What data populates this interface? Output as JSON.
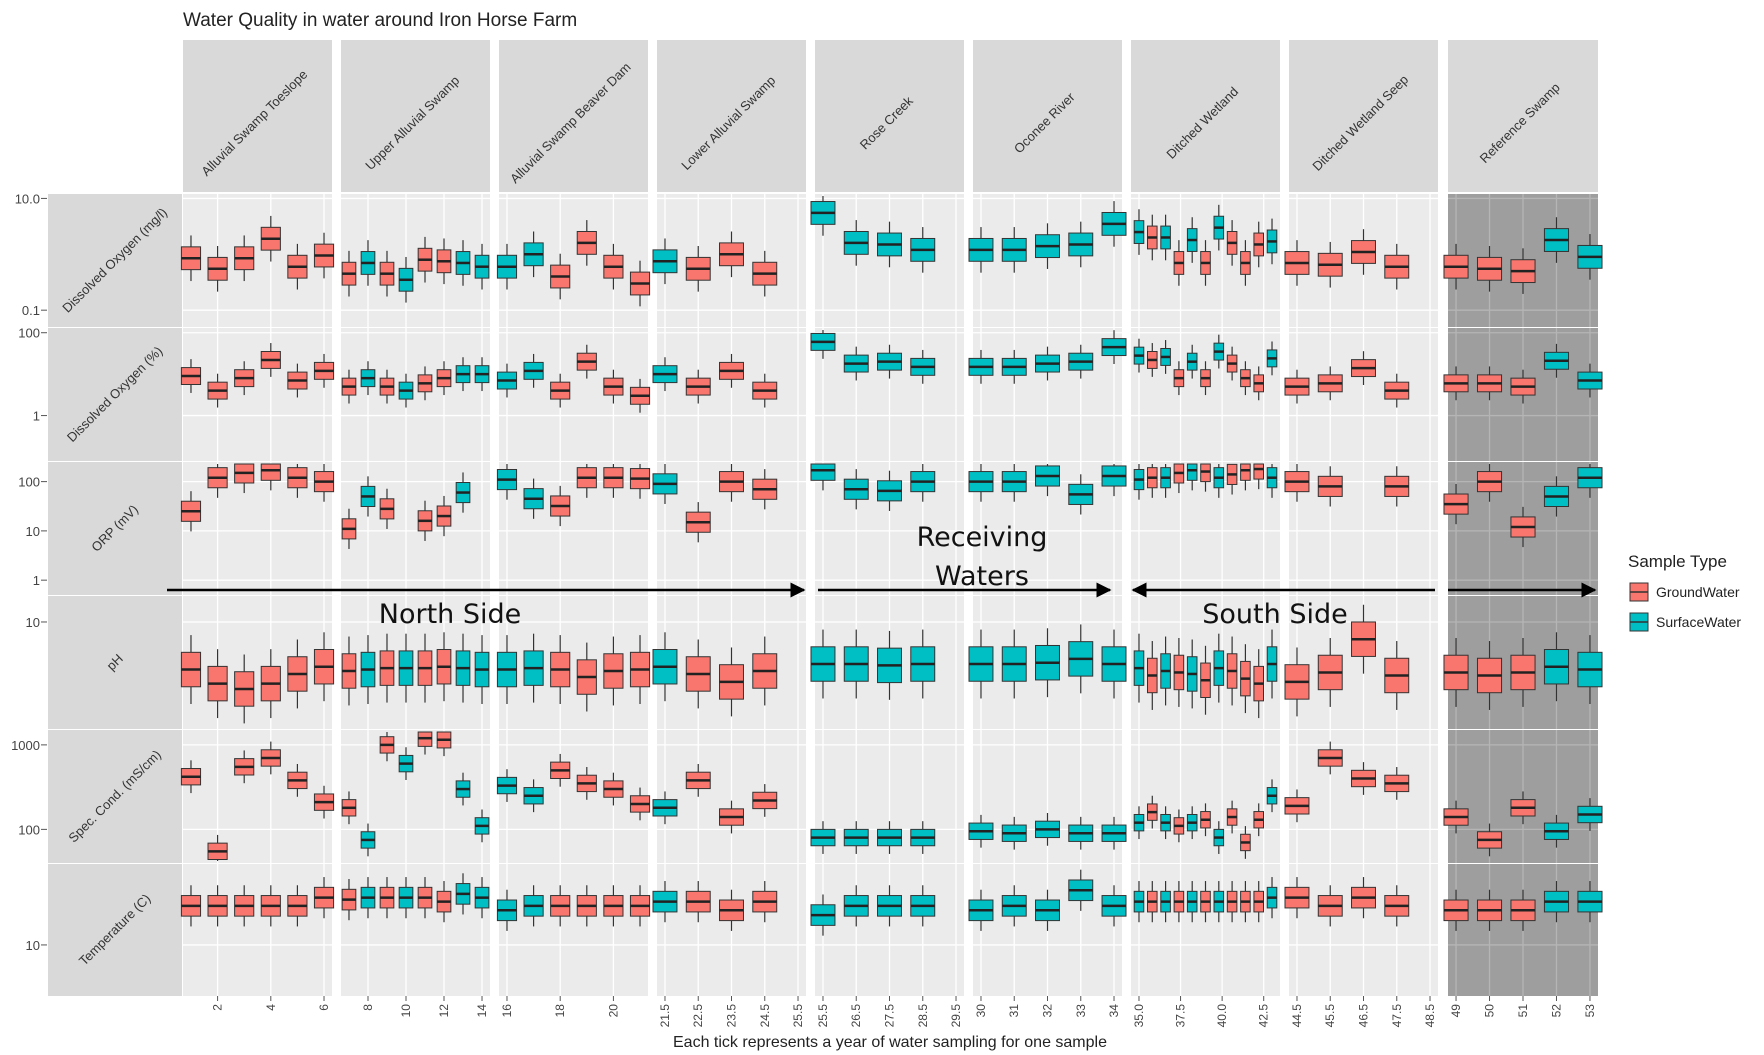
{
  "chart_data": {
    "type": "faceted-boxplot",
    "title": "Water Quality in water around Iron Horse Farm",
    "xlabel": "Each tick represents a year of water sampling for one sample",
    "legend": {
      "title": "Sample Type",
      "position": "right",
      "entries": [
        {
          "name": "GroundWater",
          "color": "#F8766D"
        },
        {
          "name": "SurfaceWater",
          "color": "#00BFC4"
        }
      ]
    },
    "colors": {
      "GroundWater": "#F8766D",
      "SurfaceWater": "#00BFC4",
      "panel_bg": "#EBEBEB",
      "strip_bg": "#D9D9D9",
      "reference_shade": "#9E9E9E"
    },
    "grid": true,
    "annotations": [
      {
        "text": "North Side",
        "arrow": "right"
      },
      {
        "text": "Receiving Waters",
        "arrow": "right"
      },
      {
        "text": "South Side",
        "arrow": "left"
      },
      {
        "text": "",
        "arrow": "right"
      }
    ],
    "columns": [
      {
        "name": "Alluvial Swamp Toeslope",
        "ticks": [
          "2",
          "4",
          "6"
        ],
        "samples": [
          1,
          2,
          3,
          4,
          5,
          6
        ]
      },
      {
        "name": "Upper Alluvial Swamp",
        "ticks": [
          "8",
          "10",
          "12",
          "14"
        ],
        "samples": [
          7,
          8,
          9,
          10,
          11,
          12,
          13,
          14
        ]
      },
      {
        "name": "Alluvial Swamp Beaver Dam",
        "ticks": [
          "16",
          "18",
          "20"
        ],
        "samples": [
          16,
          17,
          18,
          19,
          20,
          21
        ]
      },
      {
        "name": "Lower Alluvial Swamp",
        "ticks": [
          "21.5",
          "22.5",
          "23.5",
          "24.5",
          "25.5"
        ],
        "samples": [
          21.5,
          22.5,
          23.5,
          24.5
        ]
      },
      {
        "name": "Rose Creek",
        "ticks": [
          "25.5",
          "26.5",
          "27.5",
          "28.5",
          "29.5"
        ],
        "samples": [
          25.5,
          26.5,
          27.5,
          28.5
        ]
      },
      {
        "name": "Oconee River",
        "ticks": [
          "30",
          "31",
          "32",
          "33",
          "34"
        ],
        "samples": [
          30,
          31,
          32,
          33,
          34
        ]
      },
      {
        "name": "Ditched Wetland",
        "ticks": [
          "35.0",
          "37.5",
          "40.0",
          "42.5"
        ],
        "samples": [
          35,
          35.8,
          36.6,
          37.4,
          38.2,
          39,
          39.8,
          40.6,
          41.4,
          42.2,
          43
        ]
      },
      {
        "name": "Ditched Wetland Seep",
        "ticks": [
          "44.5",
          "45.5",
          "46.5",
          "47.5",
          "48.5"
        ],
        "samples": [
          44.5,
          45.5,
          46.5,
          47.5
        ]
      },
      {
        "name": "Reference Swamp",
        "ticks": [
          "49",
          "50",
          "51",
          "52",
          "53"
        ],
        "samples": [
          49,
          50,
          51,
          52,
          53
        ]
      }
    ],
    "rows": [
      {
        "name": "Dissolved Oxygen (mg/l)",
        "scale": "log10",
        "ylim": [
          0.05,
          12
        ],
        "tick_labels": [
          "0.1",
          "10.0"
        ]
      },
      {
        "name": "Dissolved Oxygen (%)",
        "scale": "log10",
        "ylim": [
          0.08,
          130
        ],
        "tick_labels": [
          "1",
          "100"
        ]
      },
      {
        "name": "ORP (mV)",
        "scale": "log10",
        "ylim": [
          0.5,
          250
        ],
        "tick_labels": [
          "1",
          "10",
          "100"
        ]
      },
      {
        "name": "pH",
        "scale": "log10",
        "ylim": [
          2.5,
          14
        ],
        "tick_labels": [
          "10"
        ]
      },
      {
        "name": "Spec. Cond. (mS/cm)",
        "scale": "log10",
        "ylim": [
          40,
          1500
        ],
        "tick_labels": [
          "100",
          "1000"
        ]
      },
      {
        "name": "Temperature (C)",
        "scale": "log10",
        "ylim": [
          5,
          30
        ],
        "tick_labels": [
          "10"
        ]
      }
    ],
    "sample_types": [
      [
        "G",
        "G",
        "G",
        "G",
        "G",
        "G"
      ],
      [
        "G",
        "S",
        "G",
        "S",
        "G",
        "G",
        "S",
        "S"
      ],
      [
        "S",
        "S",
        "G",
        "G",
        "G",
        "G"
      ],
      [
        "S",
        "G",
        "G",
        "G"
      ],
      [
        "S",
        "S",
        "S",
        "S"
      ],
      [
        "S",
        "S",
        "S",
        "S",
        "S"
      ],
      [
        "S",
        "G",
        "S",
        "G",
        "S",
        "G",
        "S",
        "G",
        "G",
        "G",
        "S"
      ],
      [
        "G",
        "G",
        "G",
        "G"
      ],
      [
        "G",
        "G",
        "G",
        "S",
        "S"
      ]
    ],
    "series": [
      {
        "name": "Dissolved Oxygen (mg/l)",
        "values": [
          [
            0.85,
            0.55,
            0.85,
            1.9,
            0.6,
            0.95
          ],
          [
            0.45,
            0.7,
            0.45,
            0.35,
            0.8,
            0.75,
            0.7,
            0.6
          ],
          [
            0.6,
            1.0,
            0.4,
            1.6,
            0.6,
            0.3
          ],
          [
            0.75,
            0.55,
            1.0,
            0.45
          ],
          [
            5.5,
            1.6,
            1.5,
            1.2
          ],
          [
            1.2,
            1.2,
            1.4,
            1.5,
            3.5
          ],
          [
            2.5,
            2.0,
            2.0,
            0.7,
            1.8,
            0.7,
            3.0,
            1.6,
            0.7,
            1.5,
            1.7
          ],
          [
            0.7,
            0.65,
            1.1,
            0.6
          ],
          [
            0.6,
            0.55,
            0.5,
            1.8,
            0.9
          ]
        ]
      },
      {
        "name": "Dissolved Oxygen (%)",
        "values": [
          [
            9,
            4,
            8,
            22,
            7,
            12
          ],
          [
            5,
            8,
            5,
            4,
            6,
            8,
            10,
            10
          ],
          [
            7,
            12,
            4,
            20,
            5,
            3
          ],
          [
            10,
            5,
            12,
            4
          ],
          [
            60,
            18,
            20,
            15
          ],
          [
            15,
            15,
            18,
            20,
            45
          ],
          [
            28,
            22,
            26,
            8,
            20,
            8,
            35,
            18,
            8,
            6,
            24
          ],
          [
            5,
            6,
            14,
            4
          ],
          [
            6,
            6,
            5,
            21,
            7
          ]
        ]
      },
      {
        "name": "ORP (mV)",
        "values": [
          [
            25,
            120,
            150,
            170,
            120,
            100
          ],
          [
            11,
            50,
            28,
            null,
            16,
            20,
            60,
            null
          ],
          [
            110,
            45,
            32,
            120,
            120,
            115
          ],
          [
            90,
            15,
            100,
            70
          ],
          [
            170,
            70,
            65,
            100
          ],
          [
            100,
            100,
            130,
            55,
            130
          ],
          [
            110,
            120,
            120,
            150,
            170,
            160,
            120,
            140,
            170,
            180,
            120
          ],
          [
            100,
            80,
            null,
            80
          ],
          [
            35,
            100,
            12,
            50,
            120
          ]
        ]
      },
      {
        "name": "pH",
        "values": [
          [
            5.4,
            4.5,
            4.2,
            4.5,
            5.1,
            5.6
          ],
          [
            5.3,
            5.4,
            5.5,
            5.5,
            5.5,
            5.6,
            5.5,
            5.4
          ],
          [
            5.4,
            5.5,
            5.4,
            4.9,
            5.3,
            5.4
          ],
          [
            5.6,
            5.1,
            4.6,
            5.3
          ],
          [
            5.8,
            5.8,
            5.7,
            5.8
          ],
          [
            5.8,
            5.8,
            5.9,
            6.2,
            5.8
          ],
          [
            5.5,
            5.0,
            5.3,
            5.2,
            5.1,
            4.7,
            5.5,
            5.3,
            4.8,
            4.5,
            5.8
          ],
          [
            4.6,
            5.2,
            8.0,
            5.0
          ],
          [
            5.2,
            5.0,
            5.2,
            5.6,
            5.4
          ]
        ]
      },
      {
        "name": "Spec. Cond. (mS/cm)",
        "values": [
          [
            420,
            55,
            550,
            700,
            380,
            210
          ],
          [
            180,
            75,
            1000,
            600,
            1200,
            1150,
            300,
            110
          ],
          [
            330,
            250,
            500,
            350,
            300,
            200
          ],
          [
            180,
            380,
            140,
            220
          ],
          [
            80,
            80,
            80,
            80
          ],
          [
            95,
            90,
            100,
            90,
            90
          ],
          [
            120,
            160,
            120,
            110,
            120,
            130,
            80,
            140,
            70,
            130,
            250
          ],
          [
            190,
            700,
            400,
            350
          ],
          [
            140,
            75,
            180,
            95,
            150
          ]
        ]
      },
      {
        "name": "Temperature (C)",
        "values": [
          [
            17,
            17,
            17,
            17,
            17,
            19
          ],
          [
            18.5,
            19,
            19,
            19,
            19,
            18,
            20,
            19
          ],
          [
            16,
            17,
            17,
            17,
            17,
            17
          ],
          [
            18,
            18,
            16,
            18
          ],
          [
            15,
            17,
            17,
            17
          ],
          [
            16,
            17,
            16,
            21,
            17
          ],
          [
            18,
            18,
            18,
            18,
            18,
            18,
            18,
            18,
            18,
            18,
            19
          ],
          [
            19,
            17,
            19,
            17
          ],
          [
            16,
            16,
            16,
            18,
            18
          ]
        ]
      }
    ]
  }
}
